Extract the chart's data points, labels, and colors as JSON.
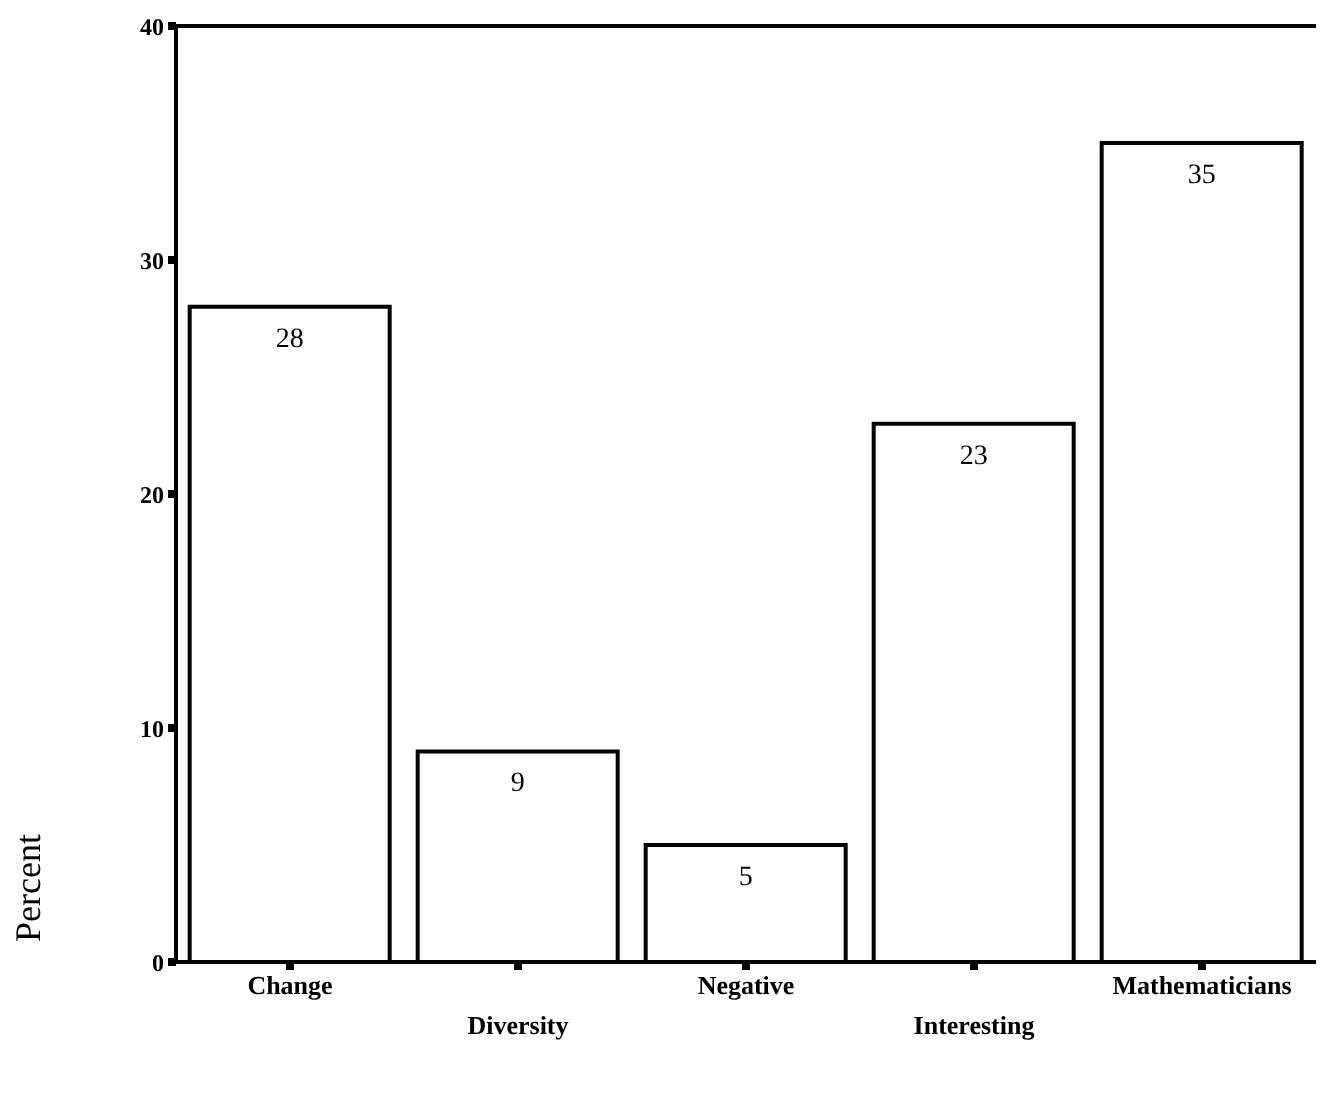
{
  "chart_data": {
    "type": "bar",
    "ylabel": "Percent",
    "categories": [
      "Change",
      "Diversity",
      "Negative",
      "Interesting",
      "Mathematicians"
    ],
    "values": [
      28,
      9,
      5,
      23,
      35
    ],
    "color": "#ffffff",
    "ylim": [
      0,
      40
    ],
    "yticks": [
      0,
      10,
      20,
      30,
      40
    ],
    "data_labels": true,
    "grid": false,
    "legend": false
  }
}
